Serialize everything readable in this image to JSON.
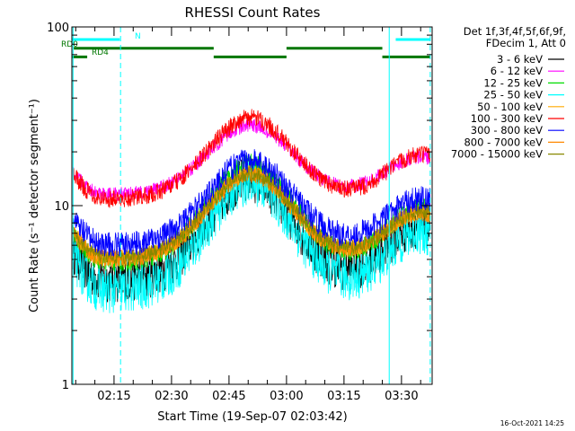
{
  "chart_data": {
    "type": "line",
    "title": "RHESSI Count Rates",
    "xlabel": "Start Time (19-Sep-07 02:03:42)",
    "ylabel": "Count Rate (s⁻¹ detector segment⁻¹)",
    "yscale": "log",
    "ylim": [
      1,
      100
    ],
    "xlim_minutes": [
      4,
      98
    ],
    "y_ticks": [
      {
        "value": 1,
        "label": "1"
      },
      {
        "value": 10,
        "label": "10"
      },
      {
        "value": 100,
        "label": "100"
      }
    ],
    "x_ticks": [
      {
        "minutes": 15,
        "label": "02:15"
      },
      {
        "minutes": 30,
        "label": "02:30"
      },
      {
        "minutes": 45,
        "label": "02:45"
      },
      {
        "minutes": 60,
        "label": "03:00"
      },
      {
        "minutes": 75,
        "label": "03:15"
      },
      {
        "minutes": 90,
        "label": "03:30"
      }
    ],
    "legend_header": [
      "Det 1f,3f,4f,5f,6f,9f,",
      "FDecim 1, Att 0"
    ],
    "legend_position": "right",
    "series": [
      {
        "name": "3 - 6 keV",
        "color": "#000000",
        "base": 3.8,
        "peak": 14,
        "noise": 0.13
      },
      {
        "name": "6 - 12 keV",
        "color": "#ff00ff",
        "base": 11.5,
        "peak": 28,
        "noise": 0.04
      },
      {
        "name": "12 - 25 keV",
        "color": "#00dd00",
        "base": 4.8,
        "peak": 17,
        "noise": 0.06
      },
      {
        "name": "25 - 50 keV",
        "color": "#00ffff",
        "base": 3.3,
        "peak": 13.5,
        "noise": 0.13
      },
      {
        "name": "50 - 100 keV",
        "color": "#ffaa00",
        "base": 5.0,
        "peak": 15,
        "noise": 0.05
      },
      {
        "name": "100 - 300 keV",
        "color": "#ff0000",
        "base": 10.8,
        "peak": 31,
        "noise": 0.05
      },
      {
        "name": "300 - 800 keV",
        "color": "#0000ff",
        "base": 6.0,
        "peak": 18,
        "noise": 0.07
      },
      {
        "name": "800 - 7000 keV",
        "color": "#ff8800",
        "base": 5.0,
        "peak": 15,
        "noise": 0.05
      },
      {
        "name": "7000 - 15000 keV",
        "color": "#888800",
        "base": 5.1,
        "peak": 15,
        "noise": 0.04
      }
    ],
    "bars": [
      {
        "label": "N",
        "color": "#00ffff",
        "y": 85,
        "segments": [
          [
            4,
            16.5
          ],
          [
            88.5,
            97.5
          ]
        ]
      },
      {
        "label": "RD0",
        "color": "#007700",
        "y": 76,
        "segments": [
          [
            4.5,
            41
          ],
          [
            60,
            85
          ]
        ]
      },
      {
        "label": "RD4",
        "color": "#007700",
        "y": 68,
        "segments": [
          [
            4,
            8
          ],
          [
            41,
            60
          ],
          [
            85,
            97.5
          ]
        ]
      }
    ],
    "vlines": [
      {
        "minutes": 4.3,
        "style": "solid"
      },
      {
        "minutes": 16.7,
        "style": "dashed"
      },
      {
        "minutes": 86.8,
        "style": "solid"
      },
      {
        "minutes": 97.5,
        "style": "dashed"
      }
    ],
    "curve_shape": {
      "peak_center_minutes": 50.5,
      "peak_sigma": 11,
      "rise2_minutes": 95,
      "rise2_sigma": 9,
      "rise2_amp": 0.55
    },
    "footer_date": "16-Oct-2021 14:25"
  }
}
